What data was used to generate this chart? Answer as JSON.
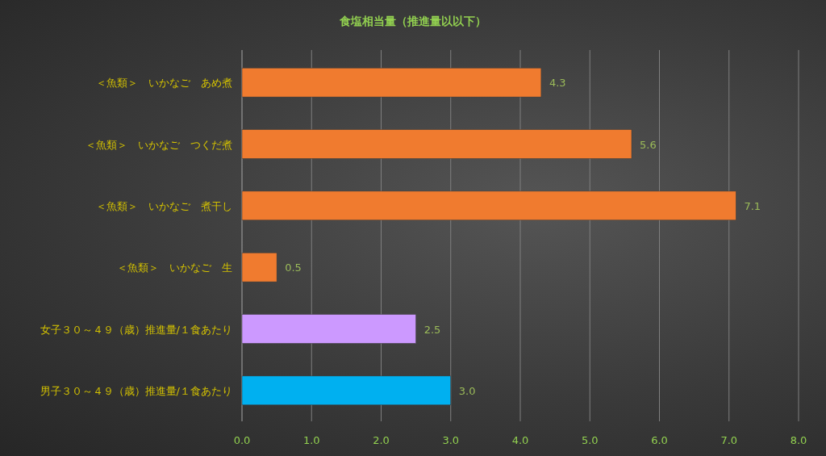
{
  "chart_data": {
    "type": "bar",
    "orientation": "horizontal",
    "title": "食塩相当量（推進量以以下）",
    "categories": [
      "＜魚類＞　いかなご　あめ煮",
      "＜魚類＞　いかなご　つくだ煮",
      "＜魚類＞　いかなご　煮干し",
      "＜魚類＞　いかなご　生",
      "女子３０～４９（歳）推進量/１食あたり",
      "男子３０～４９（歳）推進量/１食あたり"
    ],
    "values": [
      4.3,
      5.6,
      7.1,
      0.5,
      2.5,
      3.0
    ],
    "value_labels": [
      "4.3",
      "5.6",
      "7.1",
      "0.5",
      "2.5",
      "3.0"
    ],
    "colors": [
      "#f07b2f",
      "#f07b2f",
      "#f07b2f",
      "#f07b2f",
      "#cc99ff",
      "#00b0f0"
    ],
    "xlim": [
      0,
      8
    ],
    "xticks": [
      {
        "value": 0,
        "label": "0.0"
      },
      {
        "value": 1,
        "label": "1.0"
      },
      {
        "value": 2,
        "label": "2.0"
      },
      {
        "value": 3,
        "label": "3.0"
      },
      {
        "value": 4,
        "label": "4.0"
      },
      {
        "value": 5,
        "label": "5.0"
      },
      {
        "value": 6,
        "label": "6.0"
      },
      {
        "value": 7,
        "label": "7.0"
      },
      {
        "value": 8,
        "label": "8.0"
      }
    ],
    "grid": "x"
  }
}
